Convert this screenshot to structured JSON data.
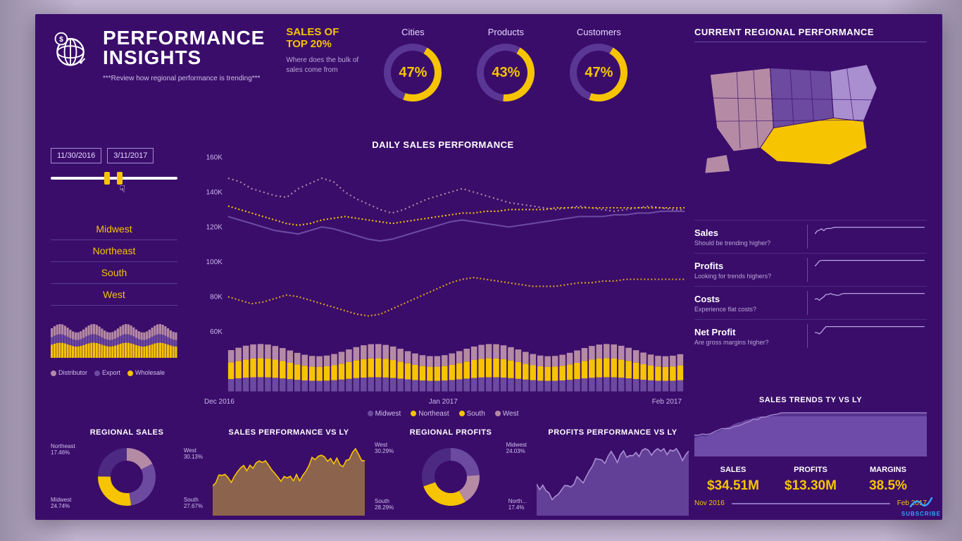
{
  "colors": {
    "bg": "#3a0d6b",
    "accent": "#f6c400",
    "purple_mid": "#6b4aa0",
    "purple_light": "#a98ed0",
    "mauve": "#b58aa5",
    "series_midwest": "#6b4aa0",
    "series_northeast": "#f6c400",
    "series_south": "#f6c400",
    "series_west": "#b58aa5",
    "text_dim": "#c8b5e6"
  },
  "header": {
    "title1": "PERFORMANCE",
    "title2": "INSIGHTS",
    "subtitle": "***Review how regional performance is trending***"
  },
  "top20": {
    "label1": "SALES OF",
    "label2": "TOP 20%",
    "sub": "Where does the bulk of sales come from",
    "donuts": [
      {
        "label": "Cities",
        "pct": 47
      },
      {
        "label": "Products",
        "pct": 43
      },
      {
        "label": "Customers",
        "pct": 47
      }
    ]
  },
  "region_perf_title": "CURRENT REGIONAL PERFORMANCE",
  "map": {
    "regions": [
      {
        "name": "west",
        "color": "#b58aa5"
      },
      {
        "name": "midwest",
        "color": "#6b4aa0"
      },
      {
        "name": "south",
        "color": "#f6c400"
      },
      {
        "name": "northeast",
        "color": "#a98ed0"
      }
    ]
  },
  "date_filter": {
    "from": "11/30/2016",
    "to": "3/11/2017",
    "handle1_pct": 42,
    "handle2_pct": 52
  },
  "regions": [
    "Midwest",
    "Northeast",
    "South",
    "West"
  ],
  "mini_stack": {
    "legend": [
      {
        "label": "Distributor",
        "color": "#b58aa5"
      },
      {
        "label": "Export",
        "color": "#6b4aa0"
      },
      {
        "label": "Wholesale",
        "color": "#f6c400"
      }
    ]
  },
  "daily_chart": {
    "title": "DAILY SALES PERFORMANCE",
    "ymin": 60,
    "ymax": 160,
    "ystep": 20,
    "yticks": [
      "160K",
      "140K",
      "120K",
      "100K",
      "80K",
      "60K"
    ],
    "xticks": [
      "Dec 2016",
      "Jan 2017",
      "Feb 2017"
    ],
    "legend": [
      {
        "label": "Midwest",
        "color": "#6b4aa0"
      },
      {
        "label": "Northeast",
        "color": "#f6c400"
      },
      {
        "label": "South",
        "color": "#f6c400"
      },
      {
        "label": "West",
        "color": "#b58aa5"
      }
    ],
    "series": {
      "west": [
        148,
        146,
        142,
        140,
        138,
        137,
        142,
        145,
        148,
        146,
        140,
        136,
        133,
        130,
        128,
        130,
        133,
        136,
        138,
        140,
        142,
        140,
        138,
        136,
        134,
        133,
        132,
        131,
        130,
        131,
        132,
        131,
        130,
        129,
        130,
        131,
        132,
        131,
        130,
        130
      ],
      "midwest": [
        126,
        124,
        122,
        120,
        118,
        117,
        116,
        118,
        120,
        119,
        117,
        115,
        113,
        112,
        113,
        115,
        117,
        119,
        121,
        123,
        124,
        123,
        122,
        121,
        120,
        121,
        122,
        123,
        124,
        125,
        126,
        126,
        126,
        127,
        127,
        128,
        128,
        129,
        129,
        129
      ],
      "northeast": [
        132,
        130,
        128,
        126,
        124,
        122,
        121,
        122,
        124,
        125,
        126,
        125,
        124,
        123,
        122,
        123,
        124,
        125,
        126,
        127,
        128,
        128,
        129,
        129,
        130,
        130,
        130,
        130,
        131,
        131,
        131,
        131,
        131,
        131,
        131,
        131,
        131,
        131,
        131,
        131
      ],
      "south": [
        80,
        78,
        76,
        77,
        79,
        81,
        80,
        78,
        76,
        74,
        72,
        70,
        69,
        70,
        73,
        76,
        79,
        82,
        85,
        88,
        90,
        91,
        90,
        89,
        88,
        87,
        86,
        86,
        86,
        87,
        88,
        88,
        89,
        89,
        90,
        90,
        90,
        90,
        90,
        90
      ]
    }
  },
  "stack_chart": {
    "bars": 62,
    "order": [
      "midwest",
      "south",
      "west"
    ],
    "colors": {
      "midwest": "#6b4aa0",
      "south": "#f6c400",
      "west": "#b58aa5"
    }
  },
  "sparks": [
    {
      "title": "Sales",
      "question": "Should be trending higher?"
    },
    {
      "title": "Profits",
      "question": "Looking for trends highers?"
    },
    {
      "title": "Costs",
      "question": "Experience flat costs?"
    },
    {
      "title": "Net Profit",
      "question": "Are gross margins higher?"
    }
  ],
  "bottom": {
    "regional_sales": {
      "title": "REGIONAL SALES",
      "slices": [
        {
          "label": "Northeast",
          "pct": 17.46,
          "color": "#b58aa5"
        },
        {
          "label": "West",
          "pct": 30.13,
          "color": "#6b4aa0"
        },
        {
          "label": "South",
          "pct": 27.67,
          "color": "#f6c400"
        },
        {
          "label": "Midwest",
          "pct": 24.74,
          "color": "#4d2a82"
        }
      ]
    },
    "sales_vs_ly": {
      "title": "SALES PERFORMANCE VS LY",
      "fill": "#9b7346",
      "line": "#f6c400"
    },
    "regional_profits": {
      "title": "REGIONAL PROFITS",
      "slices": [
        {
          "label": "Midwest",
          "pct": 24.03,
          "color": "#6b4aa0"
        },
        {
          "label": "North...",
          "pct": 17.4,
          "color": "#b58aa5"
        },
        {
          "label": "South",
          "pct": 28.29,
          "color": "#f6c400"
        },
        {
          "label": "West",
          "pct": 30.29,
          "color": "#4d2a82"
        }
      ]
    },
    "profits_vs_ly": {
      "title": "PROFITS PERFORMANCE VS LY",
      "fill": "#6b4aa0",
      "line": "#a98ed0"
    }
  },
  "right_bottom": {
    "title": "SALES TRENDS TY VS LY",
    "kpis": [
      {
        "label": "SALES",
        "value": "$34.51M"
      },
      {
        "label": "PROFITS",
        "value": "$13.30M"
      },
      {
        "label": "MARGINS",
        "value": "38.5%"
      }
    ],
    "range_from": "Nov 2016",
    "range_to": "Feb 2017"
  },
  "subscribe": "SUBSCRIBE"
}
